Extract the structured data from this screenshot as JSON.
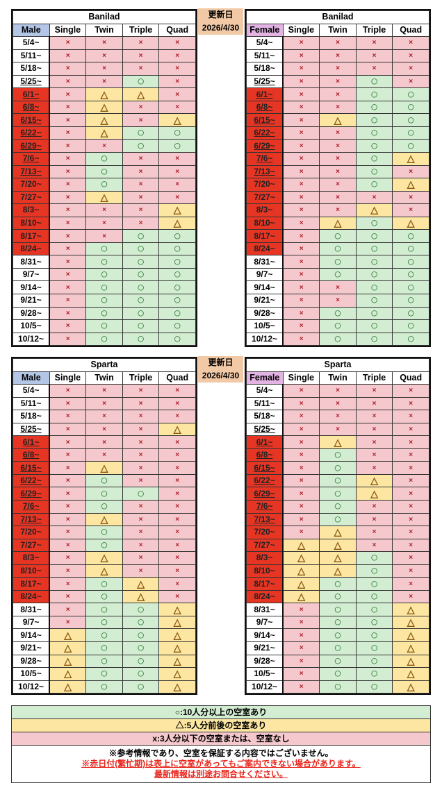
{
  "update": {
    "label": "更新日",
    "date": "2026/4/30"
  },
  "columns": [
    "Single",
    "Twin",
    "Triple",
    "Quad"
  ],
  "symbols": {
    "o": "○",
    "d": "△",
    "x": "×"
  },
  "colors": {
    "available": "#d2edd2",
    "few": "#fce6a2",
    "none": "#f4c8cc",
    "peak": "#e73524",
    "male": "#b4c6e7",
    "female": "#e3b3e3"
  },
  "dates": [
    "5/4~",
    "5/11~",
    "5/18~",
    "5/25~",
    "6/1~",
    "6/8~",
    "6/15~",
    "6/22~",
    "6/29~",
    "7/6~",
    "7/13~",
    "7/20~",
    "7/27~",
    "8/3~",
    "8/10~",
    "8/17~",
    "8/24~",
    "8/31~",
    "9/7~",
    "9/14~",
    "9/21~",
    "9/28~",
    "10/5~",
    "10/12~"
  ],
  "peak_dates": [
    "6/1~",
    "6/8~",
    "6/15~",
    "6/22~",
    "6/29~",
    "7/6~",
    "7/13~",
    "7/20~",
    "7/27~",
    "8/3~",
    "8/10~",
    "8/17~",
    "8/24~"
  ],
  "underlined_dates": [
    "5/25~",
    "6/1~",
    "6/8~",
    "6/15~",
    "6/22~",
    "6/29~",
    "7/6~",
    "7/13~"
  ],
  "tables": [
    {
      "name": "Banilad",
      "gender": "Male",
      "rows": [
        "xxxx",
        "xxxx",
        "xxxx",
        "xxox",
        "xddx",
        "xdxx",
        "xdxd",
        "xdoo",
        "xxoo",
        "xoxx",
        "xoxx",
        "xoxx",
        "xdxx",
        "xxxd",
        "xxxd",
        "xxoo",
        "xooo",
        "xooo",
        "xooo",
        "xooo",
        "xooo",
        "xooo",
        "xooo",
        "xooo"
      ]
    },
    {
      "name": "Banilad",
      "gender": "Female",
      "rows": [
        "xxxx",
        "xxxx",
        "xxxx",
        "xxox",
        "xxoo",
        "xxoo",
        "xdoo",
        "xxoo",
        "xxoo",
        "xxod",
        "xxox",
        "xxod",
        "xxxx",
        "xxdx",
        "xdod",
        "xooo",
        "xooo",
        "xooo",
        "xooo",
        "xxoo",
        "xxoo",
        "xooo",
        "xooo",
        "xooo"
      ]
    },
    {
      "name": "Sparta",
      "gender": "Male",
      "rows": [
        "xxxx",
        "xxxx",
        "xxxx",
        "xxxd",
        "xxxx",
        "xxxx",
        "xdxx",
        "xoxx",
        "xoox",
        "xoxx",
        "xdxx",
        "xoxx",
        "xoxx",
        "xdxx",
        "xdxx",
        "xodx",
        "xodx",
        "xood",
        "xood",
        "dood",
        "dood",
        "dood",
        "dood",
        "dood"
      ]
    },
    {
      "name": "Sparta",
      "gender": "Female",
      "rows": [
        "xxxx",
        "xxxx",
        "xxxx",
        "xxxx",
        "xdxx",
        "xoxx",
        "xoxx",
        "xodx",
        "xodx",
        "xoxx",
        "xoxx",
        "xdxx",
        "ddxx",
        "ddox",
        "ddox",
        "doox",
        "doox",
        "xood",
        "xood",
        "xood",
        "xood",
        "xood",
        "xood",
        "xood"
      ]
    }
  ],
  "legend": {
    "available": "○:10人分以上の空室あり",
    "few": "△:5人分前後の空室あり",
    "none": "x:3人分以下の空室または、空室なし",
    "note1": "※参考情報であり、空室を保証する内容ではございません。",
    "note2": "※赤日付(繁忙期)は表上に空室があってもご案内できない場合があります。",
    "note3": "最新情報は別途お問合せください。"
  }
}
